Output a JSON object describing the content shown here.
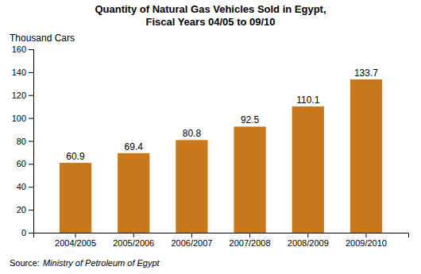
{
  "chart_data": {
    "type": "bar",
    "title": "Quantity of Natural Gas Vehicles Sold in Egypt,\nFiscal Years 04/05 to 09/10",
    "ylabel": "Thousand Cars",
    "annotations": [
      "Source:",
      "Ministry of Petroleum of Egypt"
    ],
    "categories": [
      "2004/2005",
      "2005/2006",
      "2006/2007",
      "2007/2008",
      "2008/2009",
      "2009/2010"
    ],
    "values": [
      60.9,
      69.4,
      80.8,
      92.5,
      110.1,
      133.7
    ],
    "color": "#C8781A",
    "ylim": [
      0,
      160
    ],
    "yticks": [
      0,
      20,
      40,
      60,
      80,
      100,
      120,
      140,
      160
    ],
    "grid": false,
    "data_labels": true
  }
}
